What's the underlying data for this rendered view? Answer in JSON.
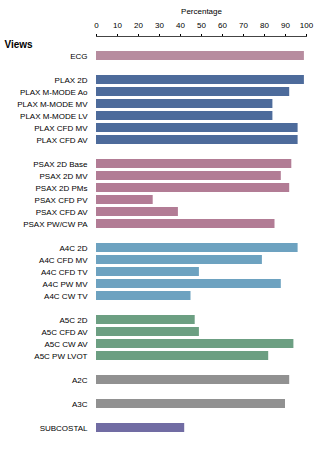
{
  "chart_data": {
    "type": "bar",
    "orientation": "horizontal",
    "xlabel": "Percentage",
    "ylabel": "Views",
    "categories": [
      "ECG",
      null,
      "PLAX 2D",
      "PLAX M-MODE Ao",
      "PLAX M-MODE MV",
      "PLAX M-MODE LV",
      "PLAX CFD MV",
      "PLAX CFD AV",
      null,
      "PSAX 2D Base",
      "PSAX 2D MV",
      "PSAX 2D PMs",
      "PSAX CFD PV",
      "PSAX CFD AV",
      "PSAX PW/CW PA",
      null,
      "A4C 2D",
      "A4C CFD MV",
      "A4C CFD TV",
      "A4C PW MV",
      "A4C CW TV",
      null,
      "A5C 2D",
      "A5C CFD AV",
      "A5C CW AV",
      "A5C PW LVOT",
      null,
      "A2C",
      null,
      "A3C",
      null,
      "SUBCOSTAL"
    ],
    "values": [
      99,
      null,
      99,
      92,
      84,
      84,
      96,
      96,
      null,
      93,
      88,
      92,
      27,
      39,
      85,
      null,
      96,
      79,
      49,
      88,
      45,
      null,
      47,
      49,
      94,
      82,
      null,
      92,
      null,
      90,
      null,
      42
    ],
    "colors": [
      "#b78c9f",
      null,
      "#4d6b9b",
      "#4d6b9b",
      "#4d6b9b",
      "#4d6b9b",
      "#4d6b9b",
      "#4d6b9b",
      null,
      "#b27c95",
      "#b27c95",
      "#b27c95",
      "#b27c95",
      "#b27c95",
      "#b27c95",
      null,
      "#6da2c0",
      "#6da2c0",
      "#6da2c0",
      "#6da2c0",
      "#6da2c0",
      null,
      "#6c9f82",
      "#6c9f82",
      "#6c9f82",
      "#6c9f82",
      null,
      "#919191",
      null,
      "#919191",
      null,
      "#716ca3"
    ],
    "xlim": [
      0,
      100
    ],
    "xticks": [
      0,
      10,
      20,
      30,
      40,
      50,
      60,
      70,
      80,
      90,
      100
    ],
    "grid": false
  }
}
